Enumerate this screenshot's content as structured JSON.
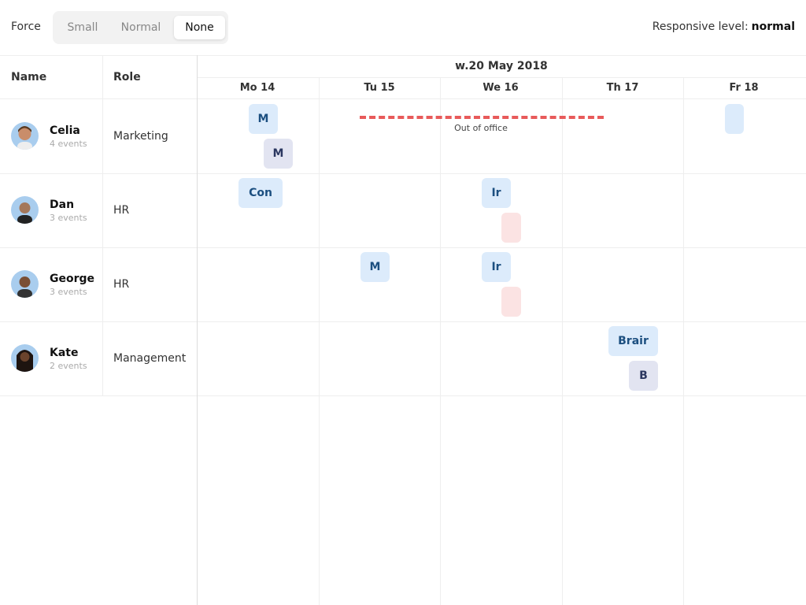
{
  "toolbar": {
    "force_label": "Force",
    "options": [
      "Small",
      "Normal",
      "None"
    ],
    "selected": "None",
    "responsive_label": "Responsive level:",
    "responsive_value": "normal"
  },
  "columns": {
    "name": "Name",
    "role": "Role"
  },
  "week": {
    "title": "w.20 May 2018",
    "days": [
      "Mo 14",
      "Tu 15",
      "We 16",
      "Th 17",
      "Fr 18"
    ]
  },
  "resources": [
    {
      "name": "Celia",
      "events": "4 events",
      "role": "Marketing",
      "avatar_color": "#a9cdee"
    },
    {
      "name": "Dan",
      "events": "3 events",
      "role": "HR",
      "avatar_color": "#a9cdee"
    },
    {
      "name": "George",
      "events": "3 events",
      "role": "HR",
      "avatar_color": "#a9cdee"
    },
    {
      "name": "Kate",
      "events": "2 events",
      "role": "Management",
      "avatar_color": "#a9cdee"
    }
  ],
  "events": {
    "celia": [
      "M",
      "M",
      ""
    ],
    "dan": [
      "Con",
      "Ir",
      ""
    ],
    "george": [
      "M",
      "Ir",
      ""
    ],
    "kate": [
      "Brair",
      "B"
    ]
  },
  "out_of_office": {
    "label": "Out of office",
    "color": "#e85a5a"
  }
}
